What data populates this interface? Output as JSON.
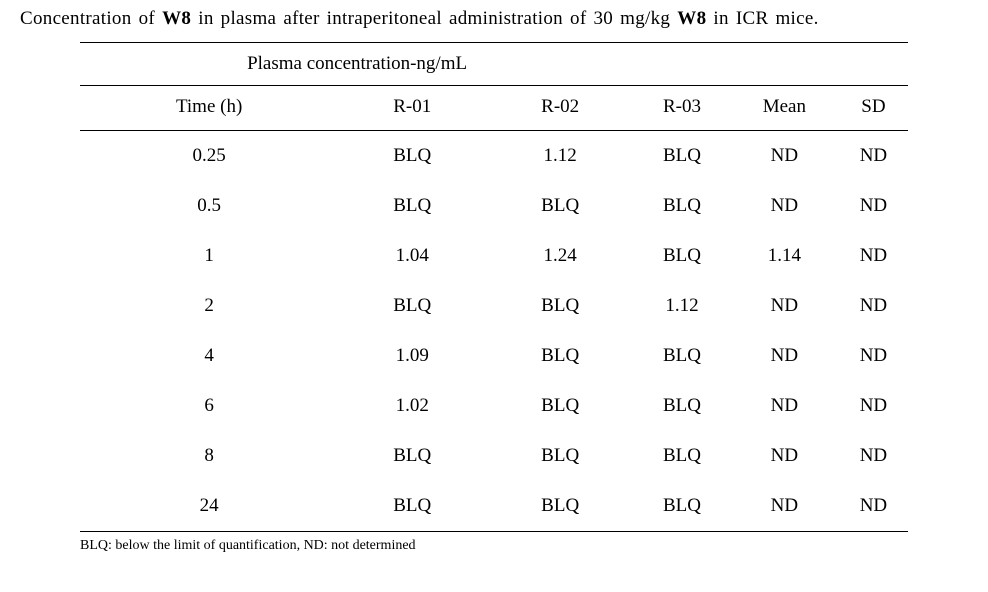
{
  "caption": {
    "prefix": "Concentration of ",
    "compound1": "W8",
    "middle": " in plasma after intraperitoneal administration of 30 mg/kg ",
    "compound2": "W8",
    "suffix": " in ICR mice."
  },
  "table": {
    "super_header": "Plasma concentration-ng/mL",
    "columns": [
      "Time (h)",
      "R-01",
      "R-02",
      "R-03",
      "Mean",
      "SD"
    ],
    "rows": [
      [
        "0.25",
        "BLQ",
        "1.12",
        "BLQ",
        "ND",
        "ND"
      ],
      [
        "0.5",
        "BLQ",
        "BLQ",
        "BLQ",
        "ND",
        "ND"
      ],
      [
        "1",
        "1.04",
        "1.24",
        "BLQ",
        "1.14",
        "ND"
      ],
      [
        "2",
        "BLQ",
        "BLQ",
        "1.12",
        "ND",
        "ND"
      ],
      [
        "4",
        "1.09",
        "BLQ",
        "BLQ",
        "ND",
        "ND"
      ],
      [
        "6",
        "1.02",
        "BLQ",
        "BLQ",
        "ND",
        "ND"
      ],
      [
        "8",
        "BLQ",
        "BLQ",
        "BLQ",
        "ND",
        "ND"
      ],
      [
        "24",
        "BLQ",
        "BLQ",
        "BLQ",
        "ND",
        "ND"
      ]
    ]
  },
  "footnote": "BLQ: below the limit of quantification, ND: not determined",
  "styling": {
    "font_family": "Times New Roman",
    "caption_fontsize": 19,
    "table_fontsize": 19,
    "footnote_fontsize": 14,
    "text_color": "#000000",
    "background_color": "#ffffff",
    "border_color": "#000000",
    "top_border_width": 1.5,
    "mid_border_width": 1,
    "bottom_border_width": 1.5,
    "column_count": 6,
    "super_header_span": 3
  }
}
